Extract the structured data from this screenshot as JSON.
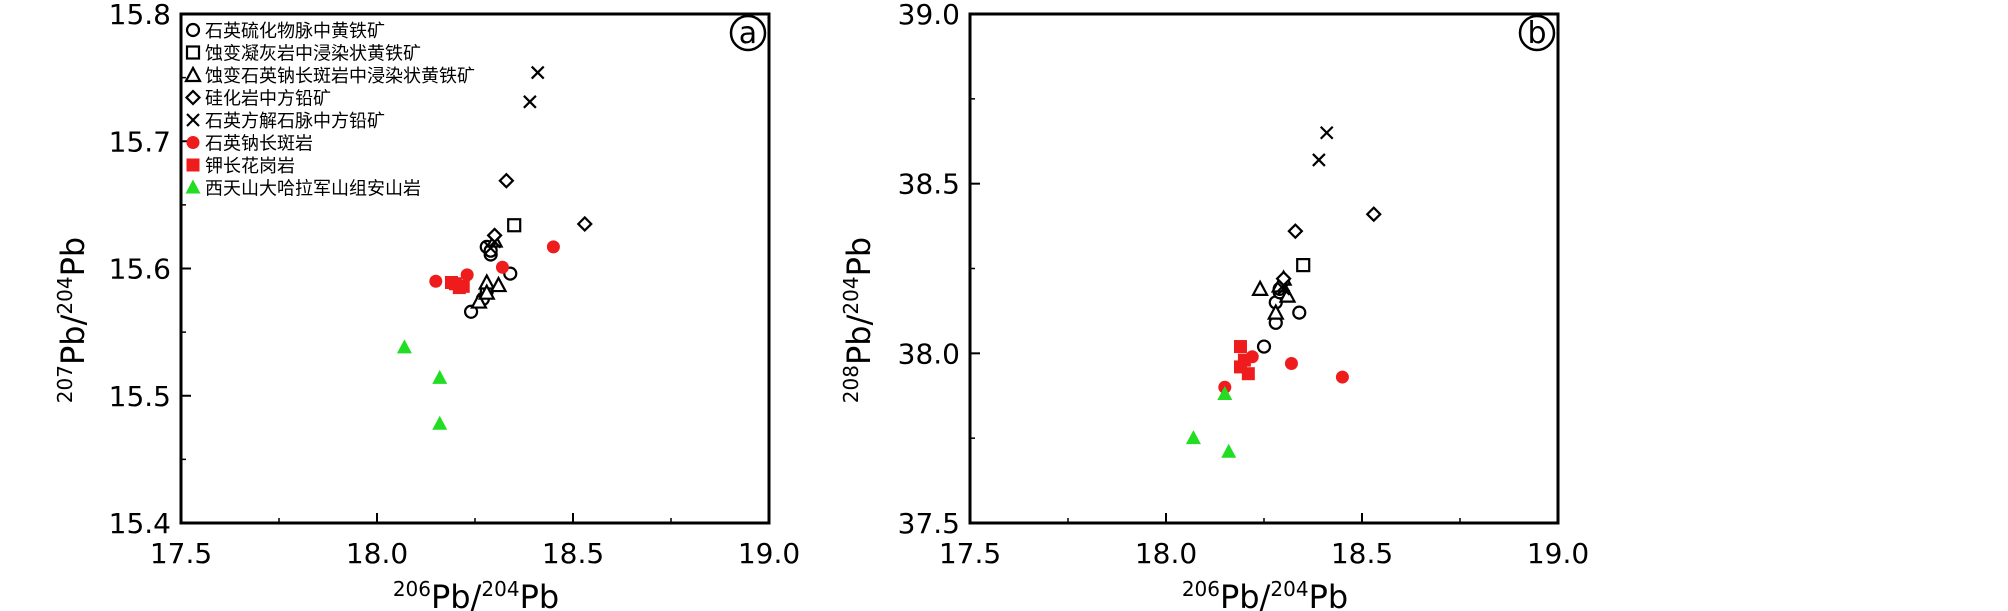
{
  "chart_data": [
    {
      "type": "scatter",
      "panel_label": "a",
      "xlabel": {
        "sup1": "206",
        "base1": "Pb/",
        "sup2": "204",
        "base2": "Pb"
      },
      "ylabel": {
        "sup1": "207",
        "base1": "Pb/",
        "sup2": "204",
        "base2": "Pb"
      },
      "xlim": [
        17.5,
        19.0
      ],
      "ylim": [
        15.4,
        15.8
      ],
      "xticks": [
        "17.5",
        "18.0",
        "18.5",
        "19.0"
      ],
      "yticks": [
        "15.4",
        "15.5",
        "15.6",
        "15.7",
        "15.8"
      ],
      "grid": false,
      "legend": {
        "position": "top-left",
        "entries": [
          {
            "marker": "circle-open",
            "color": "#000000",
            "label": "石英硫化物脉中黄铁矿"
          },
          {
            "marker": "square-open",
            "color": "#000000",
            "label": "蚀变凝灰岩中浸染状黄铁矿"
          },
          {
            "marker": "triangle-open",
            "color": "#000000",
            "label": "蚀变石英钠长斑岩中浸染状黄铁矿"
          },
          {
            "marker": "diamond-open",
            "color": "#000000",
            "label": "硅化岩中方铅矿"
          },
          {
            "marker": "cross",
            "color": "#000000",
            "label": "石英方解石脉中方铅矿"
          },
          {
            "marker": "circle-filled",
            "color": "#ee1c1c",
            "label": "石英钠长斑岩"
          },
          {
            "marker": "square-filled",
            "color": "#ee1c1c",
            "label": "钾长花岗岩"
          },
          {
            "marker": "triangle-filled",
            "color": "#22dd22",
            "label": "西天山大哈拉军山组安山岩"
          }
        ]
      },
      "series": [
        {
          "name": "石英硫化物脉中黄铁矿",
          "marker": "circle-open",
          "color": "#000000",
          "points": [
            [
              18.24,
              15.566
            ],
            [
              18.27,
              15.576
            ],
            [
              18.28,
              15.582
            ],
            [
              18.28,
              15.617
            ],
            [
              18.29,
              15.611
            ],
            [
              18.29,
              15.614
            ],
            [
              18.34,
              15.596
            ]
          ]
        },
        {
          "name": "蚀变凝灰岩中浸染状黄铁矿",
          "marker": "square-open",
          "color": "#000000",
          "points": [
            [
              18.35,
              15.634
            ]
          ]
        },
        {
          "name": "蚀变石英钠长斑岩中浸染状黄铁矿",
          "marker": "triangle-open",
          "color": "#000000",
          "points": [
            [
              18.26,
              15.574
            ],
            [
              18.28,
              15.589
            ],
            [
              18.31,
              15.587
            ],
            [
              18.28,
              15.581
            ],
            [
              18.3,
              15.622
            ]
          ]
        },
        {
          "name": "硅化岩中方铅矿",
          "marker": "diamond-open",
          "color": "#000000",
          "points": [
            [
              18.33,
              15.669
            ],
            [
              18.53,
              15.635
            ],
            [
              18.3,
              15.626
            ]
          ]
        },
        {
          "name": "石英方解石脉中方铅矿",
          "marker": "cross",
          "color": "#000000",
          "points": [
            [
              18.41,
              15.754
            ],
            [
              18.39,
              15.731
            ],
            [
              18.29,
              15.616
            ],
            [
              18.3,
              15.621
            ]
          ]
        },
        {
          "name": "石英钠长斑岩",
          "marker": "circle-filled",
          "color": "#ee1c1c",
          "points": [
            [
              18.15,
              15.59
            ],
            [
              18.23,
              15.595
            ],
            [
              18.32,
              15.601
            ],
            [
              18.45,
              15.617
            ]
          ]
        },
        {
          "name": "钾长花岗岩",
          "marker": "square-filled",
          "color": "#ee1c1c",
          "points": [
            [
              18.19,
              15.589
            ],
            [
              18.21,
              15.585
            ],
            [
              18.2,
              15.588
            ],
            [
              18.22,
              15.586
            ]
          ]
        },
        {
          "name": "西天山大哈拉军山组安山岩",
          "marker": "triangle-filled",
          "color": "#22dd22",
          "points": [
            [
              18.07,
              15.538
            ],
            [
              18.16,
              15.514
            ],
            [
              18.16,
              15.478
            ]
          ]
        }
      ]
    },
    {
      "type": "scatter",
      "panel_label": "b",
      "xlabel": {
        "sup1": "206",
        "base1": "Pb/",
        "sup2": "204",
        "base2": "Pb"
      },
      "ylabel": {
        "sup1": "208",
        "base1": "Pb/",
        "sup2": "204",
        "base2": "Pb"
      },
      "xlim": [
        17.5,
        19.0
      ],
      "ylim": [
        37.5,
        39.0
      ],
      "xticks": [
        "17.5",
        "18.0",
        "18.5",
        "19.0"
      ],
      "yticks": [
        "37.5",
        "38.0",
        "38.5",
        "39.0"
      ],
      "grid": false,
      "series": [
        {
          "name": "石英硫化物脉中黄铁矿",
          "marker": "circle-open",
          "color": "#000000",
          "points": [
            [
              18.28,
              38.09
            ],
            [
              18.25,
              38.02
            ],
            [
              18.28,
              38.15
            ],
            [
              18.29,
              38.18
            ],
            [
              18.29,
              38.19
            ],
            [
              18.34,
              38.12
            ]
          ]
        },
        {
          "name": "蚀变凝灰岩中浸染状黄铁矿",
          "marker": "square-open",
          "color": "#000000",
          "points": [
            [
              18.35,
              38.26
            ]
          ]
        },
        {
          "name": "蚀变石英钠长斑岩中浸染状黄铁矿",
          "marker": "triangle-open",
          "color": "#000000",
          "points": [
            [
              18.24,
              38.19
            ],
            [
              18.28,
              38.12
            ],
            [
              18.31,
              38.17
            ],
            [
              18.3,
              38.22
            ],
            [
              18.29,
              38.2
            ]
          ]
        },
        {
          "name": "硅化岩中方铅矿",
          "marker": "diamond-open",
          "color": "#000000",
          "points": [
            [
              18.33,
              38.36
            ],
            [
              18.53,
              38.41
            ],
            [
              18.3,
              38.22
            ]
          ]
        },
        {
          "name": "石英方解石脉中方铅矿",
          "marker": "cross",
          "color": "#000000",
          "points": [
            [
              18.41,
              38.65
            ],
            [
              18.39,
              38.57
            ],
            [
              18.3,
              38.19
            ],
            [
              18.3,
              38.2
            ]
          ]
        },
        {
          "name": "石英钠长斑岩",
          "marker": "circle-filled",
          "color": "#ee1c1c",
          "points": [
            [
              18.15,
              37.9
            ],
            [
              18.22,
              37.99
            ],
            [
              18.32,
              37.97
            ],
            [
              18.45,
              37.93
            ]
          ]
        },
        {
          "name": "钾长花岗岩",
          "marker": "square-filled",
          "color": "#ee1c1c",
          "points": [
            [
              18.19,
              38.02
            ],
            [
              18.2,
              37.98
            ],
            [
              18.19,
              37.96
            ],
            [
              18.21,
              37.94
            ]
          ]
        },
        {
          "name": "西天山大哈拉军山组安山岩",
          "marker": "triangle-filled",
          "color": "#22dd22",
          "points": [
            [
              18.07,
              37.75
            ],
            [
              18.16,
              37.71
            ],
            [
              18.15,
              37.88
            ]
          ]
        }
      ]
    }
  ]
}
